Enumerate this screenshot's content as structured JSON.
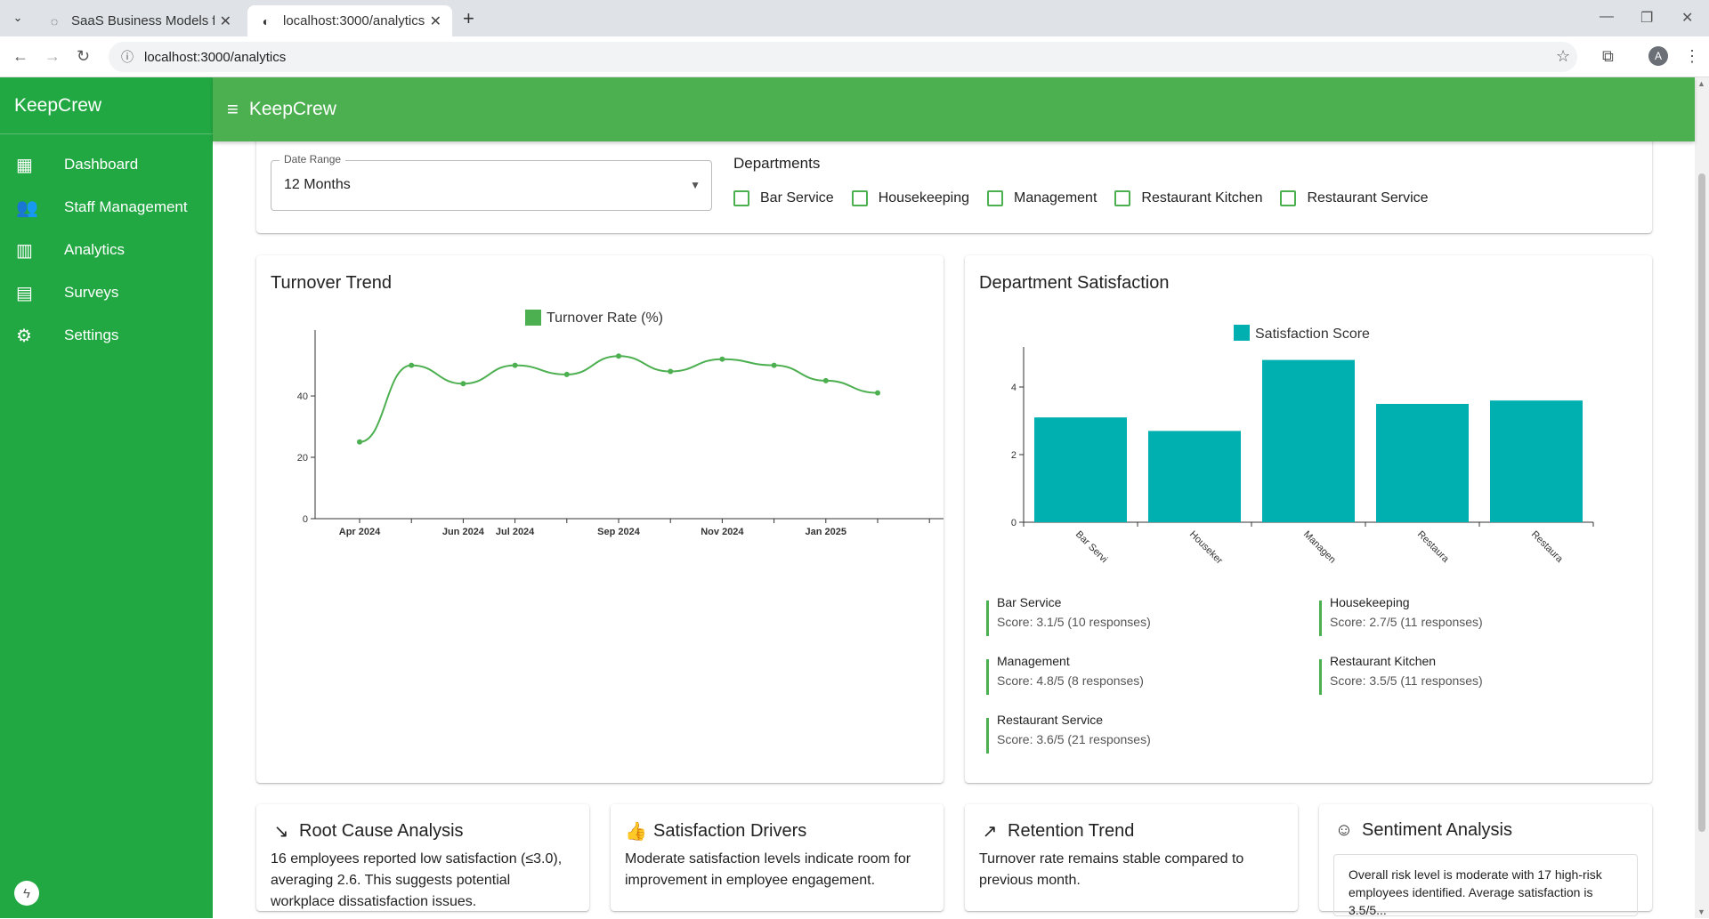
{
  "browser": {
    "tabs": [
      {
        "title": "SaaS Business Models for SMEs",
        "active": false
      },
      {
        "title": "localhost:3000/analytics",
        "active": true
      }
    ],
    "url": "localhost:3000/analytics",
    "profile_initial": "A"
  },
  "app": {
    "brand": "KeepCrew",
    "appbar_title": "KeepCrew",
    "accent": "#4caf50",
    "sidebar_color": "#22a842",
    "nav": [
      {
        "label": "Dashboard",
        "icon": "dashboard-icon"
      },
      {
        "label": "Staff Management",
        "icon": "people-icon"
      },
      {
        "label": "Analytics",
        "icon": "bar-chart-icon"
      },
      {
        "label": "Surveys",
        "icon": "poll-icon"
      },
      {
        "label": "Settings",
        "icon": "gear-icon"
      }
    ]
  },
  "filters": {
    "date_range_label": "Date Range",
    "date_range_value": "12 Months",
    "departments_title": "Departments",
    "departments": [
      "Bar Service",
      "Housekeeping",
      "Management",
      "Restaurant Kitchen",
      "Restaurant Service"
    ]
  },
  "turnover": {
    "card_title": "Turnover Trend",
    "chart_data": {
      "type": "line",
      "title": "",
      "series": [
        {
          "name": "Turnover Rate (%)",
          "color": "#4caf50",
          "values": [
            25,
            50,
            44,
            50,
            47,
            53,
            48,
            52,
            50,
            45,
            41
          ]
        }
      ],
      "x_ticks": [
        "Apr 2024",
        "Jun 2024",
        "Jul 2024",
        "Sep 2024",
        "Nov 2024",
        "Jan 2025"
      ],
      "y_ticks": [
        0,
        20,
        40
      ],
      "ylim": [
        0,
        58
      ]
    }
  },
  "satisfaction": {
    "card_title": "Department Satisfaction",
    "chart_data": {
      "type": "bar",
      "categories": [
        "Bar Servi",
        "Houseker",
        "Managen",
        "Restaura",
        "Restaura"
      ],
      "series": [
        {
          "name": "Satisfaction Score",
          "color": "#00b0b0",
          "values": [
            3.1,
            2.7,
            4.8,
            3.5,
            3.6
          ]
        }
      ],
      "y_ticks": [
        0,
        2,
        4
      ],
      "ylim": [
        0,
        5
      ]
    },
    "details": [
      {
        "name": "Bar Service",
        "score": "Score: 3.1/5 (10 responses)"
      },
      {
        "name": "Housekeeping",
        "score": "Score: 2.7/5 (11 responses)"
      },
      {
        "name": "Management",
        "score": "Score: 4.8/5 (8 responses)"
      },
      {
        "name": "Restaurant Kitchen",
        "score": "Score: 3.5/5 (11 responses)"
      },
      {
        "name": "Restaurant Service",
        "score": "Score: 3.6/5 (21 responses)"
      }
    ]
  },
  "insights": [
    {
      "title": "Root Cause Analysis",
      "icon": "trending-down-icon",
      "body": "16 employees reported low satisfaction (≤3.0), averaging 2.6. This suggests potential workplace dissatisfaction issues."
    },
    {
      "title": "Satisfaction Drivers",
      "icon": "thumbs-up-icon",
      "body": "Moderate satisfaction levels indicate room for improvement in employee engagement."
    },
    {
      "title": "Retention Trend",
      "icon": "trending-up-icon",
      "body": "Turnover rate remains stable compared to previous month."
    },
    {
      "title": "Sentiment Analysis",
      "icon": "smiley-icon",
      "body": "Overall risk level is moderate with 17 high-risk employees identified. Average satisfaction is 3.5/5..."
    }
  ]
}
